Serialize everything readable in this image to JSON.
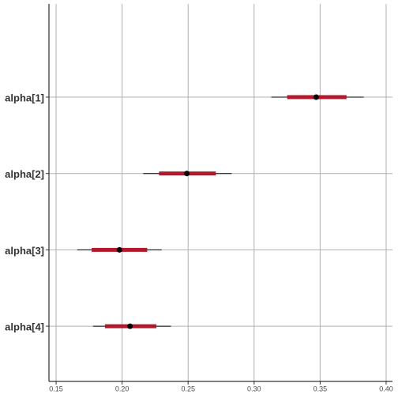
{
  "chart_data": {
    "type": "interval",
    "categories": [
      "alpha[1]",
      "alpha[2]",
      "alpha[3]",
      "alpha[4]"
    ],
    "m": [
      0.347,
      0.249,
      0.198,
      0.206
    ],
    "l": [
      0.325,
      0.228,
      0.177,
      0.187
    ],
    "h": [
      0.37,
      0.271,
      0.219,
      0.226
    ],
    "ll": [
      0.313,
      0.216,
      0.166,
      0.178
    ],
    "hh": [
      0.383,
      0.283,
      0.23,
      0.237
    ],
    "color": "#b2182b",
    "point_color": "#000000",
    "xlim": [
      0.1446,
      0.4048
    ],
    "xticks": [
      0.15,
      {
        "value": 0.2,
        "label": "0.20"
      },
      0.25,
      {
        "value": 0.3,
        "label": "0.30"
      },
      0.35,
      {
        "value": 0.4,
        "label": "0.40"
      }
    ],
    "grid": true
  }
}
